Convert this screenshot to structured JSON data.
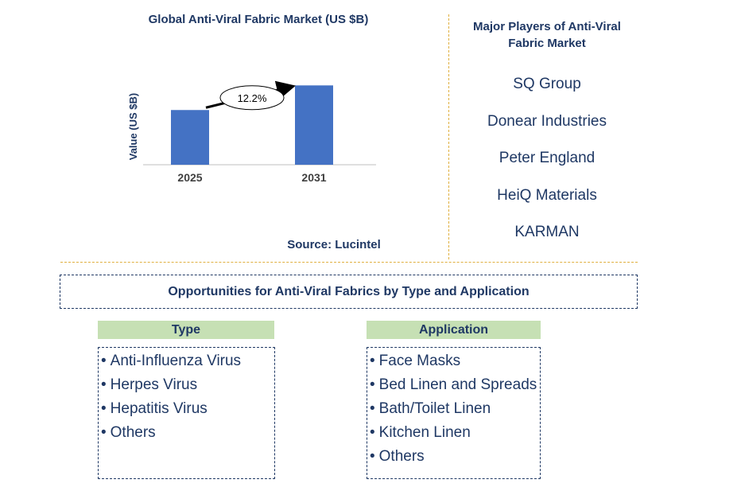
{
  "chart_data": {
    "type": "bar",
    "title": "Global Anti-Viral Fabric Market (US $B)",
    "categories": [
      "2025",
      "2031"
    ],
    "values": [
      1.0,
      1.45
    ],
    "ylabel": "Value (US $B)",
    "ylim": [
      0,
      1.6
    ],
    "annotation": "12.2%",
    "bar_color": "#4472c4",
    "source": "Source: Lucintel"
  },
  "players": {
    "title": "Major Players of Anti-Viral Fabric Market",
    "items": [
      "SQ Group",
      "Donear Industries",
      "Peter England",
      "HeiQ Materials",
      "KARMAN"
    ]
  },
  "opportunities": {
    "title": "Opportunities for Anti-Viral Fabrics by Type and Application",
    "type": {
      "header": "Type",
      "items": [
        "Anti-Influenza Virus",
        "Herpes Virus",
        "Hepatitis Virus",
        "Others"
      ]
    },
    "application": {
      "header": "Application",
      "items": [
        "Face Masks",
        "Bed Linen and Spreads",
        "Bath/Toilet Linen",
        "Kitchen Linen",
        "Others"
      ]
    }
  },
  "colors": {
    "text": "#1f3864",
    "divider": "#e0b040",
    "header_fill": "#c6e0b4"
  }
}
